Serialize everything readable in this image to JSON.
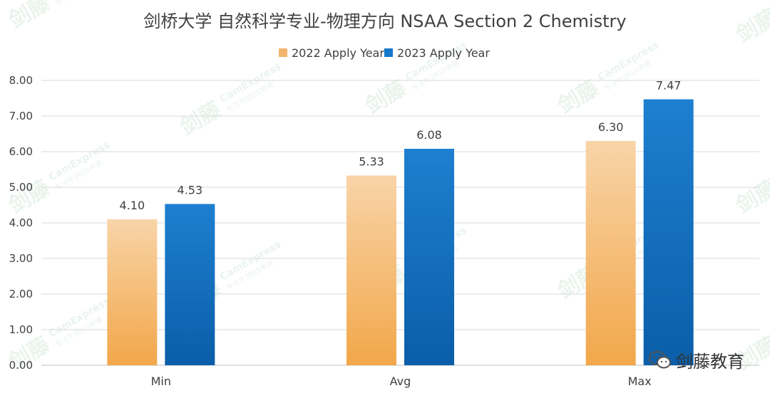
{
  "chart_data": {
    "type": "bar",
    "title": "剑桥大学 自然科学专业-物理方向 NSAA Section 2 Chemistry",
    "categories": [
      "Min",
      "Avg",
      "Max"
    ],
    "series": [
      {
        "name": "2022 Apply Year",
        "values": [
          4.1,
          5.33,
          6.3
        ],
        "color_top": "#f8d4a8",
        "color_bottom": "#f2a74a"
      },
      {
        "name": "2023 Apply Year",
        "values": [
          4.53,
          6.08,
          7.47
        ],
        "color_top": "#1e7fd0",
        "color_bottom": "#0b5ea8"
      }
    ],
    "ylim": [
      0,
      8
    ],
    "yticks": [
      "0.00",
      "1.00",
      "2.00",
      "3.00",
      "4.00",
      "5.00",
      "6.00",
      "7.00",
      "8.00"
    ],
    "data_labels": [
      [
        "4.10",
        "5.33",
        "6.30"
      ],
      [
        "4.53",
        "6.08",
        "7.47"
      ]
    ],
    "grid": true,
    "legend_position": "top-center"
  },
  "watermark": {
    "brand_cn": "剑藤",
    "brand_en": "CamExpress",
    "tagline": "专注牛剑G5申请"
  },
  "logo": {
    "text": "剑藤教育"
  },
  "colors": {
    "text": "#404040",
    "grid": "#d9d9d9",
    "axis": "#bfbfbf"
  }
}
